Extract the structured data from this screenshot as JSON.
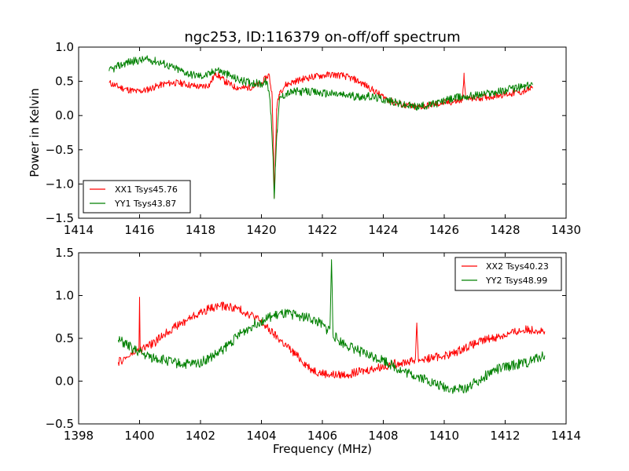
{
  "colors": {
    "red": "#ff0000",
    "green": "#008000",
    "axis": "#000000",
    "background": "#ffffff"
  },
  "chart_data": [
    {
      "type": "line",
      "title": "ngc253, ID:116379 on-off/off spectrum",
      "xlabel": "",
      "ylabel": "Power in Kelvin",
      "xlim": [
        1414,
        1430
      ],
      "ylim": [
        -1.5,
        1.0
      ],
      "xticks": [
        "1414",
        "1416",
        "1418",
        "1420",
        "1422",
        "1424",
        "1426",
        "1428",
        "1430"
      ],
      "yticks": [
        "1.0",
        "0.5",
        "0.0",
        "−0.5",
        "−1.0",
        "−1.5"
      ],
      "xtick_values": [
        1414,
        1416,
        1418,
        1420,
        1422,
        1424,
        1426,
        1428,
        1430
      ],
      "ytick_values": [
        1.0,
        0.5,
        0.0,
        -0.5,
        -1.0,
        -1.5
      ],
      "grid": false,
      "legend": "lower-left",
      "series": [
        {
          "name": "XX1 Tsys45.76",
          "color": "#ff0000",
          "noise": 0.05,
          "x": [
            1415.0,
            1415.3,
            1415.6,
            1415.9,
            1416.2,
            1416.5,
            1416.8,
            1417.1,
            1417.4,
            1417.7,
            1418.0,
            1418.3,
            1418.5,
            1418.8,
            1419.1,
            1419.4,
            1419.7,
            1420.0,
            1420.15,
            1420.25,
            1420.35,
            1420.4,
            1420.42,
            1420.45,
            1420.5,
            1420.6,
            1420.8,
            1421.1,
            1421.5,
            1421.9,
            1422.3,
            1422.7,
            1423.1,
            1423.5,
            1423.9,
            1424.3,
            1424.7,
            1425.1,
            1425.5,
            1425.9,
            1426.3,
            1426.6,
            1426.65,
            1426.7,
            1427.0,
            1427.4,
            1427.8,
            1428.2,
            1428.6,
            1428.9
          ],
          "y": [
            0.48,
            0.42,
            0.38,
            0.35,
            0.37,
            0.42,
            0.46,
            0.48,
            0.47,
            0.44,
            0.42,
            0.45,
            0.62,
            0.5,
            0.42,
            0.4,
            0.42,
            0.46,
            0.55,
            0.6,
            0.3,
            -0.5,
            -1.2,
            -0.8,
            0.1,
            0.35,
            0.45,
            0.5,
            0.55,
            0.58,
            0.6,
            0.58,
            0.52,
            0.42,
            0.3,
            0.2,
            0.15,
            0.12,
            0.15,
            0.18,
            0.2,
            0.22,
            0.62,
            0.25,
            0.25,
            0.27,
            0.3,
            0.32,
            0.35,
            0.4
          ]
        },
        {
          "name": "YY1 Tsys43.87",
          "color": "#008000",
          "noise": 0.06,
          "x": [
            1415.0,
            1415.3,
            1415.6,
            1415.9,
            1416.2,
            1416.5,
            1416.8,
            1417.1,
            1417.4,
            1417.7,
            1418.0,
            1418.3,
            1418.5,
            1418.8,
            1419.1,
            1419.4,
            1419.7,
            1420.0,
            1420.15,
            1420.25,
            1420.32,
            1420.38,
            1420.42,
            1420.46,
            1420.52,
            1420.6,
            1420.8,
            1421.1,
            1421.5,
            1421.9,
            1422.3,
            1422.7,
            1423.1,
            1423.5,
            1423.9,
            1424.3,
            1424.7,
            1425.1,
            1425.5,
            1425.9,
            1426.3,
            1426.7,
            1427.1,
            1427.5,
            1427.9,
            1428.3,
            1428.6,
            1428.9
          ],
          "y": [
            0.65,
            0.72,
            0.78,
            0.8,
            0.82,
            0.8,
            0.76,
            0.7,
            0.65,
            0.6,
            0.58,
            0.6,
            0.68,
            0.62,
            0.55,
            0.5,
            0.48,
            0.46,
            0.5,
            0.35,
            0.0,
            -0.6,
            -1.2,
            -0.7,
            -0.2,
            0.25,
            0.32,
            0.35,
            0.35,
            0.33,
            0.32,
            0.3,
            0.28,
            0.28,
            0.25,
            0.2,
            0.15,
            0.13,
            0.15,
            0.2,
            0.25,
            0.28,
            0.3,
            0.33,
            0.36,
            0.4,
            0.42,
            0.45
          ]
        }
      ]
    },
    {
      "type": "line",
      "title": "",
      "xlabel": "Frequency (MHz)",
      "ylabel": "",
      "xlim": [
        1398,
        1414
      ],
      "ylim": [
        -0.5,
        1.5
      ],
      "xticks": [
        "1398",
        "1400",
        "1402",
        "1404",
        "1406",
        "1408",
        "1410",
        "1412",
        "1414"
      ],
      "yticks": [
        "1.5",
        "1.0",
        "0.5",
        "0.0",
        "−0.5"
      ],
      "xtick_values": [
        1398,
        1400,
        1402,
        1404,
        1406,
        1408,
        1410,
        1412,
        1414
      ],
      "ytick_values": [
        1.5,
        1.0,
        0.5,
        0.0,
        -0.5
      ],
      "grid": false,
      "legend": "top-right",
      "series": [
        {
          "name": "XX2 Tsys40.23",
          "color": "#ff0000",
          "noise": 0.05,
          "x": [
            1399.3,
            1399.6,
            1399.9,
            1399.98,
            1400.0,
            1400.02,
            1400.2,
            1400.5,
            1400.8,
            1401.1,
            1401.4,
            1401.7,
            1402.0,
            1402.3,
            1402.6,
            1402.9,
            1403.2,
            1403.5,
            1403.8,
            1404.1,
            1404.4,
            1404.7,
            1405.0,
            1405.3,
            1405.6,
            1405.9,
            1406.2,
            1406.5,
            1406.8,
            1407.1,
            1407.4,
            1407.7,
            1408.0,
            1408.3,
            1408.6,
            1408.9,
            1409.05,
            1409.1,
            1409.15,
            1409.4,
            1409.7,
            1410.0,
            1410.3,
            1410.6,
            1410.9,
            1411.2,
            1411.5,
            1411.8,
            1412.1,
            1412.4,
            1412.7,
            1413.0,
            1413.3
          ],
          "y": [
            0.22,
            0.28,
            0.35,
            0.36,
            0.98,
            0.36,
            0.4,
            0.45,
            0.55,
            0.62,
            0.68,
            0.75,
            0.8,
            0.85,
            0.88,
            0.87,
            0.85,
            0.8,
            0.75,
            0.65,
            0.55,
            0.45,
            0.35,
            0.25,
            0.15,
            0.1,
            0.08,
            0.07,
            0.08,
            0.1,
            0.12,
            0.15,
            0.17,
            0.2,
            0.22,
            0.23,
            0.25,
            0.68,
            0.25,
            0.26,
            0.28,
            0.3,
            0.32,
            0.38,
            0.42,
            0.46,
            0.5,
            0.52,
            0.55,
            0.58,
            0.6,
            0.6,
            0.58
          ]
        },
        {
          "name": "YY2 Tsys48.99",
          "color": "#008000",
          "noise": 0.06,
          "x": [
            1399.3,
            1399.6,
            1399.9,
            1400.2,
            1400.5,
            1400.8,
            1401.1,
            1401.4,
            1401.7,
            1402.0,
            1402.3,
            1402.6,
            1402.9,
            1403.2,
            1403.5,
            1403.8,
            1404.1,
            1404.4,
            1404.7,
            1405.0,
            1405.3,
            1405.6,
            1405.9,
            1406.15,
            1406.25,
            1406.3,
            1406.35,
            1406.5,
            1406.8,
            1407.1,
            1407.4,
            1407.7,
            1408.0,
            1408.3,
            1408.6,
            1408.9,
            1409.2,
            1409.5,
            1409.8,
            1410.1,
            1410.4,
            1410.7,
            1411.0,
            1411.3,
            1411.6,
            1411.9,
            1412.2,
            1412.5,
            1412.8,
            1413.1,
            1413.3
          ],
          "y": [
            0.48,
            0.42,
            0.35,
            0.3,
            0.27,
            0.25,
            0.22,
            0.2,
            0.2,
            0.22,
            0.27,
            0.33,
            0.42,
            0.52,
            0.6,
            0.67,
            0.72,
            0.76,
            0.78,
            0.78,
            0.76,
            0.73,
            0.68,
            0.6,
            0.62,
            1.42,
            0.55,
            0.48,
            0.42,
            0.37,
            0.32,
            0.28,
            0.25,
            0.18,
            0.12,
            0.08,
            0.05,
            0.0,
            -0.05,
            -0.08,
            -0.1,
            -0.08,
            -0.02,
            0.05,
            0.12,
            0.15,
            0.18,
            0.2,
            0.22,
            0.28,
            0.3
          ]
        }
      ]
    }
  ]
}
